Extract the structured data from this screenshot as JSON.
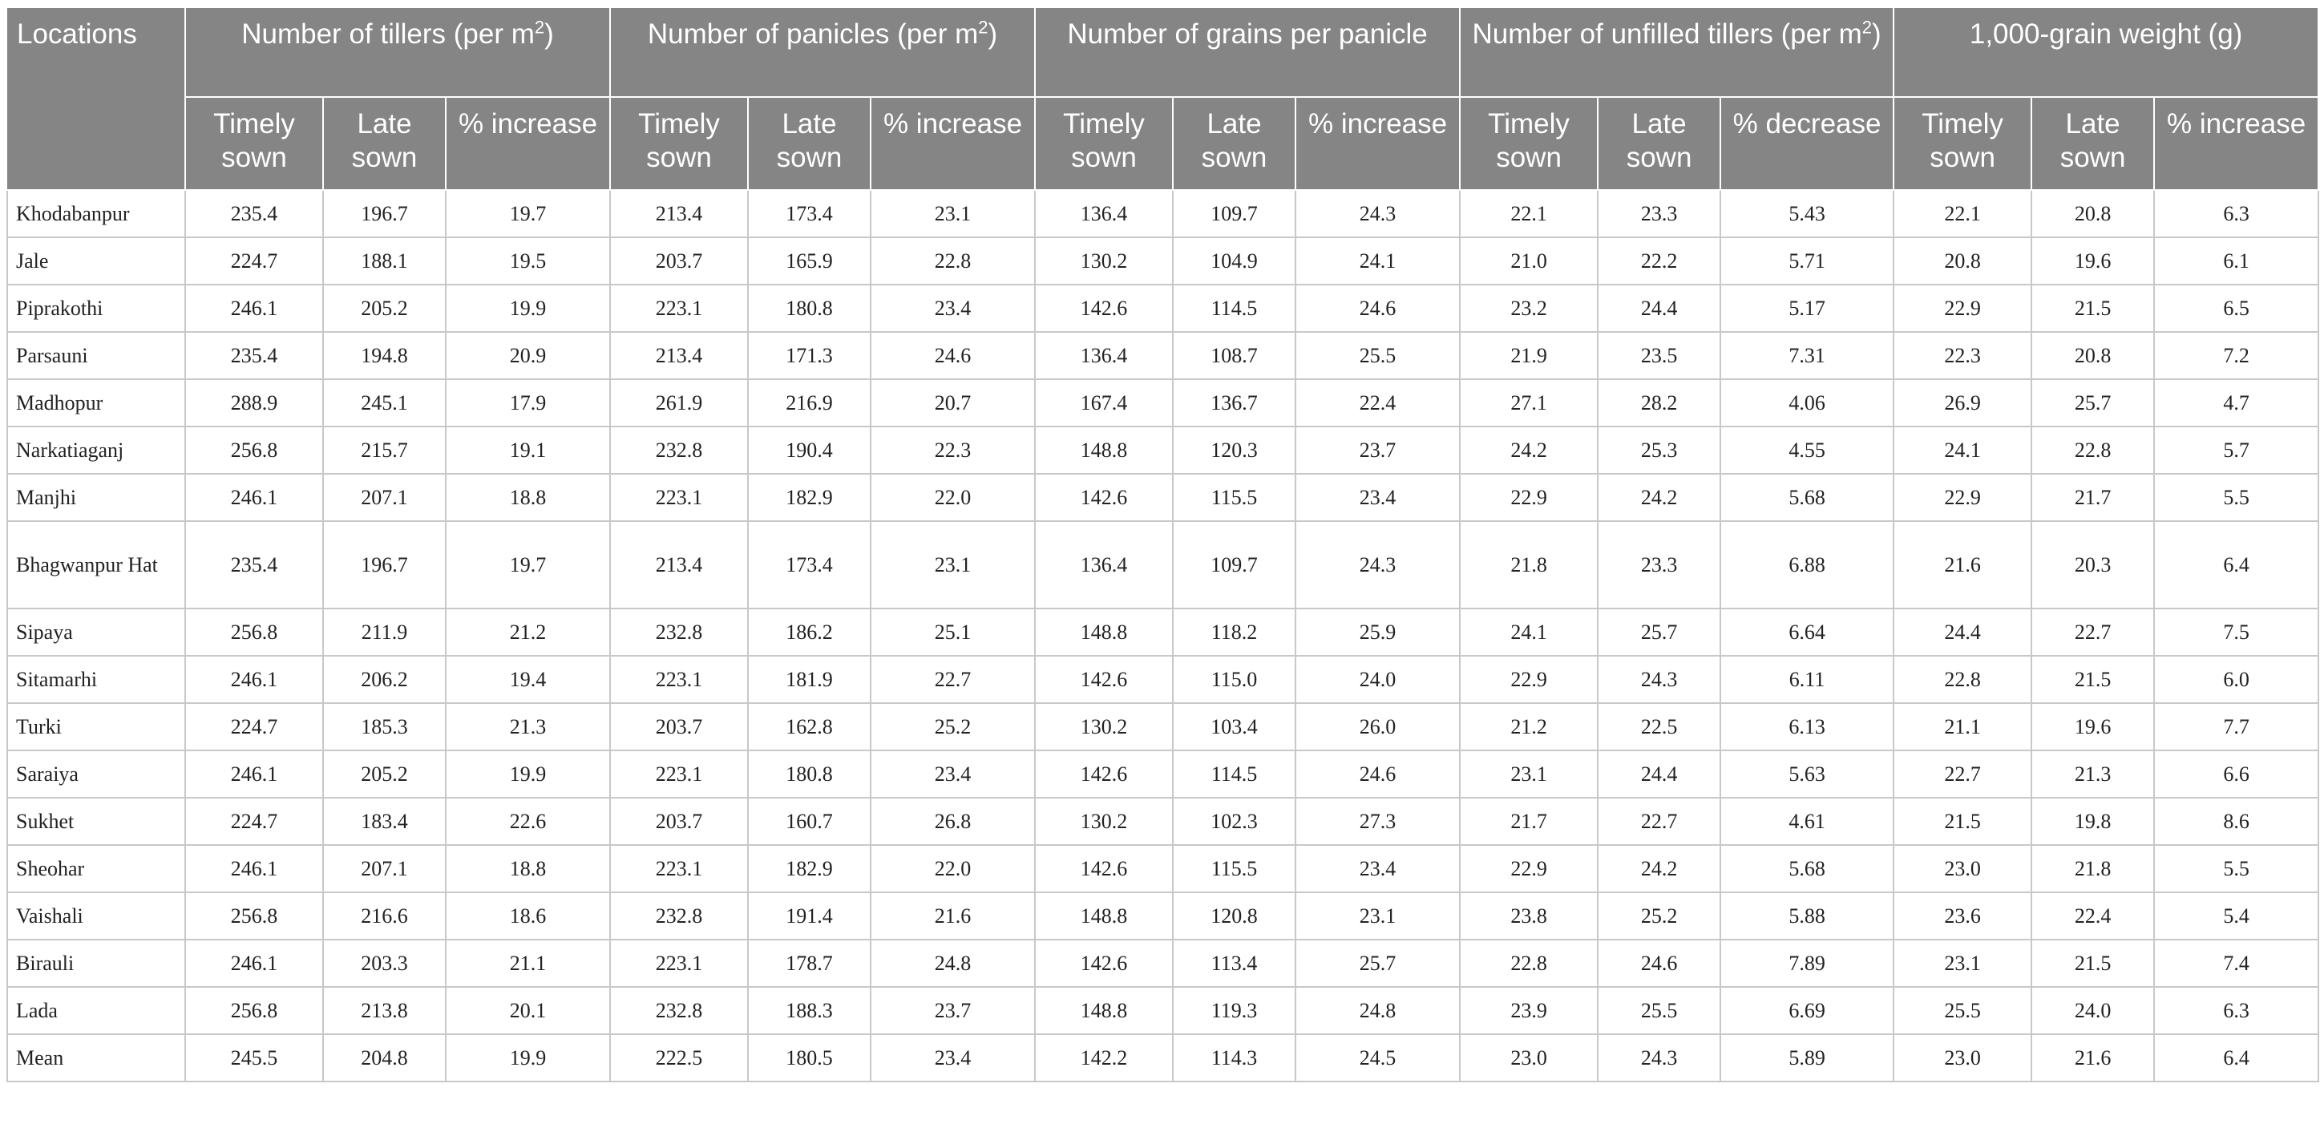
{
  "table": {
    "location_header": "Locations",
    "groups": [
      {
        "label": "Number of tillers (per m",
        "sup": "2",
        "after": ")"
      },
      {
        "label": "Number of panicles (per m",
        "sup": "2",
        "after": ")"
      },
      {
        "label": "Number of grains per panicle",
        "sup": "",
        "after": ""
      },
      {
        "label": "Number of unfilled tillers (per m",
        "sup": "2",
        "after": ")"
      },
      {
        "label": "1,000-grain weight (g)",
        "sup": "",
        "after": ""
      }
    ],
    "subheaders": [
      [
        "Timely sown",
        "Late sown",
        "% increase"
      ],
      [
        "Timely sown",
        "Late sown",
        "% increase"
      ],
      [
        "Timely sown",
        "Late sown",
        "% increase"
      ],
      [
        "Timely sown",
        "Late sown",
        "% decrease"
      ],
      [
        "Timely sown",
        "Late sown",
        "% increase"
      ]
    ],
    "rows": [
      {
        "location": "Khodabanpur",
        "values": [
          "235.4",
          "196.7",
          "19.7",
          "213.4",
          "173.4",
          "23.1",
          "136.4",
          "109.7",
          "24.3",
          "22.1",
          "23.3",
          "5.43",
          "22.1",
          "20.8",
          "6.3"
        ]
      },
      {
        "location": "Jale",
        "values": [
          "224.7",
          "188.1",
          "19.5",
          "203.7",
          "165.9",
          "22.8",
          "130.2",
          "104.9",
          "24.1",
          "21.0",
          "22.2",
          "5.71",
          "20.8",
          "19.6",
          "6.1"
        ]
      },
      {
        "location": "Piprakothi",
        "values": [
          "246.1",
          "205.2",
          "19.9",
          "223.1",
          "180.8",
          "23.4",
          "142.6",
          "114.5",
          "24.6",
          "23.2",
          "24.4",
          "5.17",
          "22.9",
          "21.5",
          "6.5"
        ]
      },
      {
        "location": "Parsauni",
        "values": [
          "235.4",
          "194.8",
          "20.9",
          "213.4",
          "171.3",
          "24.6",
          "136.4",
          "108.7",
          "25.5",
          "21.9",
          "23.5",
          "7.31",
          "22.3",
          "20.8",
          "7.2"
        ]
      },
      {
        "location": "Madhopur",
        "values": [
          "288.9",
          "245.1",
          "17.9",
          "261.9",
          "216.9",
          "20.7",
          "167.4",
          "136.7",
          "22.4",
          "27.1",
          "28.2",
          "4.06",
          "26.9",
          "25.7",
          "4.7"
        ]
      },
      {
        "location": "Narkatiaganj",
        "values": [
          "256.8",
          "215.7",
          "19.1",
          "232.8",
          "190.4",
          "22.3",
          "148.8",
          "120.3",
          "23.7",
          "24.2",
          "25.3",
          "4.55",
          "24.1",
          "22.8",
          "5.7"
        ]
      },
      {
        "location": "Manjhi",
        "values": [
          "246.1",
          "207.1",
          "18.8",
          "223.1",
          "182.9",
          "22.0",
          "142.6",
          "115.5",
          "23.4",
          "22.9",
          "24.2",
          "5.68",
          "22.9",
          "21.7",
          "5.5"
        ]
      },
      {
        "location": "Bhagwanpur Hat",
        "values": [
          "235.4",
          "196.7",
          "19.7",
          "213.4",
          "173.4",
          "23.1",
          "136.4",
          "109.7",
          "24.3",
          "21.8",
          "23.3",
          "6.88",
          "21.6",
          "20.3",
          "6.4"
        ]
      },
      {
        "location": "Sipaya",
        "values": [
          "256.8",
          "211.9",
          "21.2",
          "232.8",
          "186.2",
          "25.1",
          "148.8",
          "118.2",
          "25.9",
          "24.1",
          "25.7",
          "6.64",
          "24.4",
          "22.7",
          "7.5"
        ]
      },
      {
        "location": "Sitamarhi",
        "values": [
          "246.1",
          "206.2",
          "19.4",
          "223.1",
          "181.9",
          "22.7",
          "142.6",
          "115.0",
          "24.0",
          "22.9",
          "24.3",
          "6.11",
          "22.8",
          "21.5",
          "6.0"
        ]
      },
      {
        "location": "Turki",
        "values": [
          "224.7",
          "185.3",
          "21.3",
          "203.7",
          "162.8",
          "25.2",
          "130.2",
          "103.4",
          "26.0",
          "21.2",
          "22.5",
          "6.13",
          "21.1",
          "19.6",
          "7.7"
        ]
      },
      {
        "location": "Saraiya",
        "values": [
          "246.1",
          "205.2",
          "19.9",
          "223.1",
          "180.8",
          "23.4",
          "142.6",
          "114.5",
          "24.6",
          "23.1",
          "24.4",
          "5.63",
          "22.7",
          "21.3",
          "6.6"
        ]
      },
      {
        "location": "Sukhet",
        "values": [
          "224.7",
          "183.4",
          "22.6",
          "203.7",
          "160.7",
          "26.8",
          "130.2",
          "102.3",
          "27.3",
          "21.7",
          "22.7",
          "4.61",
          "21.5",
          "19.8",
          "8.6"
        ]
      },
      {
        "location": "Sheohar",
        "values": [
          "246.1",
          "207.1",
          "18.8",
          "223.1",
          "182.9",
          "22.0",
          "142.6",
          "115.5",
          "23.4",
          "22.9",
          "24.2",
          "5.68",
          "23.0",
          "21.8",
          "5.5"
        ]
      },
      {
        "location": "Vaishali",
        "values": [
          "256.8",
          "216.6",
          "18.6",
          "232.8",
          "191.4",
          "21.6",
          "148.8",
          "120.8",
          "23.1",
          "23.8",
          "25.2",
          "5.88",
          "23.6",
          "22.4",
          "5.4"
        ]
      },
      {
        "location": "Birauli",
        "values": [
          "246.1",
          "203.3",
          "21.1",
          "223.1",
          "178.7",
          "24.8",
          "142.6",
          "113.4",
          "25.7",
          "22.8",
          "24.6",
          "7.89",
          "23.1",
          "21.5",
          "7.4"
        ]
      },
      {
        "location": "Lada",
        "values": [
          "256.8",
          "213.8",
          "20.1",
          "232.8",
          "188.3",
          "23.7",
          "148.8",
          "119.3",
          "24.8",
          "23.9",
          "25.5",
          "6.69",
          "25.5",
          "24.0",
          "6.3"
        ]
      },
      {
        "location": "Mean",
        "values": [
          "245.5",
          "204.8",
          "19.9",
          "222.5",
          "180.5",
          "23.4",
          "142.2",
          "114.3",
          "24.5",
          "23.0",
          "24.3",
          "5.89",
          "23.0",
          "21.6",
          "6.4"
        ]
      }
    ]
  },
  "colors": {
    "header_bg": "#858585",
    "header_text": "#ffffff",
    "grid_line": "#c8c8c8"
  }
}
